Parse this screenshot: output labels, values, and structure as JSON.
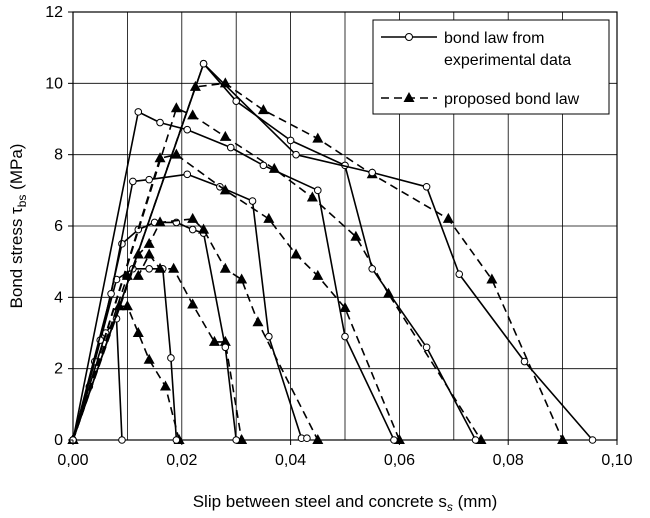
{
  "chart_data": {
    "type": "line",
    "xlabel": {
      "main": "Slip between steel and concrete s",
      "sub": "s",
      "unit": " (mm)"
    },
    "ylabel": {
      "main": "Bond stress τ",
      "sub": "bs",
      "unit": " (MPa)"
    },
    "xlim": [
      0,
      0.1
    ],
    "ylim": [
      0,
      12
    ],
    "xticks": [
      0,
      0.02,
      0.04,
      0.06,
      0.08,
      0.1
    ],
    "xtick_labels": [
      "0,00",
      "0,02",
      "0,04",
      "0,06",
      "0,08",
      "0,10"
    ],
    "yticks": [
      0,
      2,
      4,
      6,
      8,
      10,
      12
    ],
    "ytick_labels": [
      "0",
      "2",
      "4",
      "6",
      "8",
      "10",
      "12"
    ],
    "grid": true,
    "legend": {
      "placement": "top-right",
      "entries": [
        {
          "label_lines": [
            "bond law from",
            "experimental data"
          ],
          "style": "solid",
          "marker": "open-circle"
        },
        {
          "label_lines": [
            "proposed bond law"
          ],
          "style": "dashed",
          "marker": "filled-triangle"
        }
      ]
    },
    "series": [
      {
        "style": "solid",
        "marker": "open-circle",
        "x": [
          0,
          0.003,
          0.006,
          0.008,
          0.009
        ],
        "y": [
          0,
          1.5,
          3.0,
          3.4,
          0
        ]
      },
      {
        "style": "dashed",
        "marker": "filled-triangle",
        "x": [
          0,
          0.0085,
          0.01,
          0.012,
          0.014,
          0.017,
          0.0195
        ],
        "y": [
          0,
          3.75,
          3.75,
          3.0,
          2.25,
          1.5,
          0
        ]
      },
      {
        "style": "solid",
        "marker": "open-circle",
        "x": [
          0,
          0.004,
          0.008,
          0.011,
          0.014,
          0.0165,
          0.018,
          0.019
        ],
        "y": [
          0,
          2.2,
          4.5,
          4.8,
          4.8,
          4.8,
          2.3,
          0
        ]
      },
      {
        "style": "dashed",
        "marker": "filled-triangle",
        "x": [
          0,
          0.01,
          0.012,
          0.014,
          0.016,
          0.0185,
          0.022,
          0.026,
          0.028,
          0.031
        ],
        "y": [
          0,
          4.6,
          4.6,
          5.2,
          4.8,
          4.8,
          3.8,
          2.75,
          2.75,
          0
        ]
      },
      {
        "style": "solid",
        "marker": "open-circle",
        "x": [
          0,
          0.005,
          0.009,
          0.012,
          0.015,
          0.019,
          0.022,
          0.024,
          0.028,
          0.03
        ],
        "y": [
          0,
          2.8,
          5.5,
          5.9,
          6.1,
          6.1,
          5.9,
          5.8,
          2.6,
          0
        ]
      },
      {
        "style": "dashed",
        "marker": "filled-triangle",
        "x": [
          0,
          0.012,
          0.014,
          0.016,
          0.022,
          0.024,
          0.028,
          0.031,
          0.034,
          0.045
        ],
        "y": [
          0,
          5.2,
          5.5,
          6.1,
          6.2,
          5.9,
          4.8,
          4.5,
          3.3,
          0
        ]
      },
      {
        "style": "solid",
        "marker": "open-circle",
        "x": [
          0,
          0.007,
          0.011,
          0.014,
          0.021,
          0.027,
          0.033,
          0.036,
          0.042,
          0.043
        ],
        "y": [
          0,
          4.1,
          7.25,
          7.3,
          7.45,
          7.1,
          6.7,
          2.9,
          0.05,
          0.05
        ]
      },
      {
        "style": "dashed",
        "marker": "filled-triangle",
        "x": [
          0,
          0.016,
          0.019,
          0.028,
          0.036,
          0.041,
          0.045,
          0.05,
          0.06
        ],
        "y": [
          0,
          7.9,
          8.0,
          7.0,
          6.2,
          5.2,
          4.6,
          3.7,
          0
        ]
      },
      {
        "style": "solid",
        "marker": "open-circle",
        "x": [
          0,
          0.012,
          0.016,
          0.021,
          0.029,
          0.035,
          0.045,
          0.05,
          0.059
        ],
        "y": [
          0,
          9.2,
          8.9,
          8.7,
          8.2,
          7.7,
          7.0,
          2.9,
          0
        ]
      },
      {
        "style": "dashed",
        "marker": "filled-triangle",
        "x": [
          0,
          0.019,
          0.022,
          0.028,
          0.037,
          0.044,
          0.052,
          0.058,
          0.075
        ],
        "y": [
          0,
          9.3,
          9.1,
          8.5,
          7.6,
          6.8,
          5.7,
          4.1,
          0
        ]
      },
      {
        "style": "solid",
        "marker": "open-circle",
        "x": [
          0,
          0.024,
          0.03,
          0.04,
          0.05,
          0.055,
          0.065,
          0.074
        ],
        "y": [
          0,
          10.55,
          9.5,
          8.4,
          7.7,
          4.8,
          2.6,
          0
        ]
      },
      {
        "style": "dashed",
        "marker": "filled-triangle",
        "x": [
          0,
          0.0225,
          0.028,
          0.035,
          0.045,
          0.055,
          0.069,
          0.077,
          0.09
        ],
        "y": [
          0,
          9.9,
          10.0,
          9.25,
          8.45,
          7.45,
          6.2,
          4.5,
          0
        ]
      },
      {
        "style": "solid",
        "marker": "open-circle",
        "x": [
          0,
          0.024,
          0.041,
          0.055,
          0.065,
          0.071,
          0.083,
          0.0955
        ],
        "y": [
          0,
          10.55,
          8.0,
          7.5,
          7.1,
          4.65,
          2.2,
          0
        ]
      }
    ]
  }
}
